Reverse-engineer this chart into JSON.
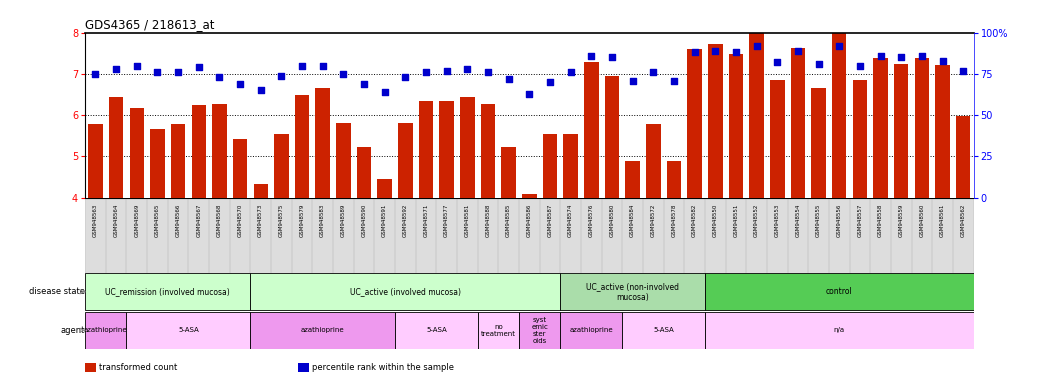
{
  "title": "GDS4365 / 218613_at",
  "samples": [
    "GSM948563",
    "GSM948564",
    "GSM948569",
    "GSM948565",
    "GSM948566",
    "GSM948567",
    "GSM948568",
    "GSM948570",
    "GSM948573",
    "GSM948575",
    "GSM948579",
    "GSM948583",
    "GSM948589",
    "GSM948590",
    "GSM948591",
    "GSM948592",
    "GSM948571",
    "GSM948577",
    "GSM948581",
    "GSM948588",
    "GSM948585",
    "GSM948586",
    "GSM948587",
    "GSM948574",
    "GSM948576",
    "GSM948580",
    "GSM948584",
    "GSM948572",
    "GSM948578",
    "GSM948582",
    "GSM948550",
    "GSM948551",
    "GSM948552",
    "GSM948553",
    "GSM948554",
    "GSM948555",
    "GSM948556",
    "GSM948557",
    "GSM948558",
    "GSM948559",
    "GSM948560",
    "GSM948561",
    "GSM948562"
  ],
  "bar_values": [
    5.78,
    6.45,
    6.18,
    5.67,
    5.78,
    6.25,
    6.28,
    5.43,
    4.33,
    5.55,
    6.5,
    6.65,
    5.8,
    5.22,
    4.45,
    5.8,
    6.35,
    6.35,
    6.45,
    6.28,
    5.22,
    4.08,
    5.55,
    5.55,
    7.28,
    6.95,
    4.9,
    5.78,
    4.9,
    7.6,
    7.72,
    7.48,
    7.98,
    6.85,
    7.62,
    6.65,
    7.98,
    6.85,
    7.38,
    7.25,
    7.38,
    7.22,
    5.98
  ],
  "percentile_values": [
    75,
    78,
    80,
    76,
    76,
    79,
    73,
    69,
    65,
    74,
    80,
    80,
    75,
    69,
    64,
    73,
    76,
    77,
    78,
    76,
    72,
    63,
    70,
    76,
    86,
    85,
    71,
    76,
    71,
    88,
    89,
    88,
    92,
    82,
    89,
    81,
    92,
    80,
    86,
    85,
    86,
    83,
    77
  ],
  "ylim": [
    4,
    8
  ],
  "yticks_left": [
    4,
    5,
    6,
    7,
    8
  ],
  "yticks_right": [
    0,
    25,
    50,
    75,
    100
  ],
  "ytick_right_labels": [
    "0",
    "25",
    "50",
    "75",
    "100%"
  ],
  "grid_lines": [
    5,
    6,
    7
  ],
  "bar_color": "#cc2200",
  "dot_color": "#0000cc",
  "disease_groups": [
    {
      "label": "UC_remission (involved mucosa)",
      "start": 0,
      "end": 7,
      "color": "#ccffcc"
    },
    {
      "label": "UC_active (involved mucosa)",
      "start": 8,
      "end": 22,
      "color": "#ccffcc"
    },
    {
      "label": "UC_active (non-involved\nmucosa)",
      "start": 23,
      "end": 29,
      "color": "#aaddaa"
    },
    {
      "label": "control",
      "start": 30,
      "end": 42,
      "color": "#55cc55"
    }
  ],
  "agent_groups": [
    {
      "label": "azathioprine",
      "start": 0,
      "end": 1,
      "color": "#ee99ee"
    },
    {
      "label": "5-ASA",
      "start": 2,
      "end": 7,
      "color": "#ffccff"
    },
    {
      "label": "azathioprine",
      "start": 8,
      "end": 14,
      "color": "#ee99ee"
    },
    {
      "label": "5-ASA",
      "start": 15,
      "end": 18,
      "color": "#ffccff"
    },
    {
      "label": "no\ntreatment",
      "start": 19,
      "end": 20,
      "color": "#ffccff"
    },
    {
      "label": "syst\nemic\nster\noids",
      "start": 21,
      "end": 22,
      "color": "#ee99ee"
    },
    {
      "label": "azathioprine",
      "start": 23,
      "end": 25,
      "color": "#ee99ee"
    },
    {
      "label": "5-ASA",
      "start": 26,
      "end": 29,
      "color": "#ffccff"
    },
    {
      "label": "n/a",
      "start": 30,
      "end": 42,
      "color": "#ffccff"
    }
  ],
  "legend_items": [
    {
      "label": "transformed count",
      "color": "#cc2200"
    },
    {
      "label": "percentile rank within the sample",
      "color": "#0000cc"
    }
  ],
  "xlabel_disease": "disease state",
  "xlabel_agent": "agent"
}
